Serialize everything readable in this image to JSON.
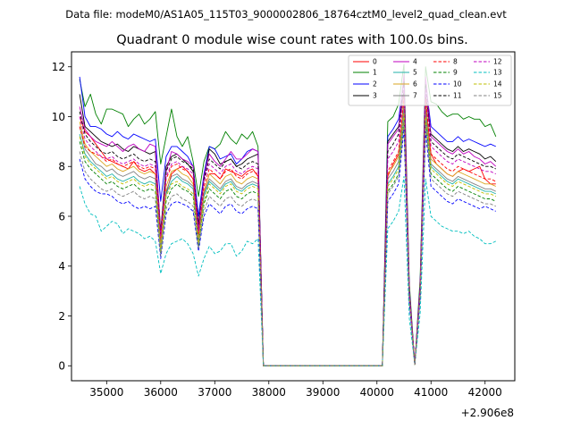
{
  "suptitle": "Data file: modeM0/AS1A05_115T03_9000002806_18764cztM0_level2_quad_clean.evt",
  "chart_data": {
    "type": "line",
    "title": "Quadrant 0 module wise count rates with 100.0s bins.",
    "xlabel": "",
    "ylabel": "",
    "x_offset_label": "+2.906e8",
    "xlim": [
      34350,
      42550
    ],
    "ylim": [
      -0.6,
      12.6
    ],
    "xticks": [
      35000,
      36000,
      37000,
      38000,
      39000,
      40000,
      41000,
      42000
    ],
    "xtick_labels": [
      "35000",
      "36000",
      "37000",
      "38000",
      "39000",
      "40000",
      "41000",
      "42000"
    ],
    "yticks": [
      0,
      2,
      4,
      6,
      8,
      10,
      12
    ],
    "ytick_labels": [
      "0",
      "2",
      "4",
      "6",
      "8",
      "10",
      "12"
    ],
    "grid": false,
    "legend_position": "top-right",
    "legend_columns": 4,
    "bins": {
      "x_start": 34500,
      "x_step": 100,
      "count": 78,
      "note": "x values = x_start + i*x_step, offset 2.906e8"
    },
    "gap_value": 0,
    "series": [
      {
        "name": "0",
        "color": "#ff0000",
        "dash": "solid",
        "seg1": [
          10.0,
          9.4,
          9.2,
          8.9,
          8.6,
          8.3,
          8.2,
          8.1,
          8.0,
          7.9,
          8.2,
          7.9,
          7.8,
          7.9,
          7.7,
          5.0,
          6.9,
          7.7,
          7.9,
          8.0,
          7.8,
          7.5,
          5.2,
          7.0,
          7.7,
          7.7,
          7.5,
          7.9,
          7.8,
          7.7,
          7.6,
          7.8,
          7.9,
          7.6
        ],
        "seg2": [
          7.6,
          8.1,
          8.5,
          10.7,
          2.8,
          0.05,
          3.0,
          10.6,
          8.5,
          8.1,
          7.9,
          7.7,
          7.6,
          7.8,
          7.9,
          7.8,
          7.9,
          8.0,
          7.5,
          7.3,
          7.3
        ]
      },
      {
        "name": "1",
        "color": "#008000",
        "dash": "solid",
        "seg1": [
          11.5,
          10.4,
          10.9,
          10.1,
          9.7,
          10.3,
          10.3,
          10.2,
          10.1,
          9.6,
          9.9,
          10.1,
          9.7,
          9.9,
          10.2,
          8.1,
          9.2,
          10.3,
          9.2,
          8.8,
          9.2,
          8.2,
          6.8,
          8.2,
          8.8,
          8.7,
          8.9,
          9.4,
          9.1,
          8.9,
          9.3,
          9.1,
          9.4,
          8.8
        ],
        "seg2": [
          9.8,
          10.0,
          10.5,
          12.1,
          3.3,
          0.05,
          3.5,
          12.0,
          10.6,
          10.5,
          10.2,
          10.0,
          10.1,
          10.1,
          9.9,
          10.0,
          9.9,
          9.9,
          9.6,
          9.7,
          9.2
        ]
      },
      {
        "name": "2",
        "color": "#0000ff",
        "dash": "solid",
        "seg1": [
          11.6,
          10.0,
          9.6,
          9.6,
          9.5,
          9.3,
          9.2,
          9.4,
          9.2,
          9.1,
          9.3,
          9.2,
          9.1,
          9.0,
          9.1,
          6.6,
          8.4,
          8.8,
          8.8,
          8.6,
          8.4,
          8.0,
          6.0,
          7.7,
          8.8,
          8.7,
          8.3,
          8.4,
          8.5,
          8.1,
          8.3,
          8.6,
          8.7,
          8.6
        ],
        "seg2": [
          9.2,
          9.5,
          9.9,
          11.5,
          3.1,
          0.05,
          3.3,
          11.4,
          9.6,
          9.4,
          9.2,
          9.0,
          9.0,
          9.2,
          9.0,
          9.1,
          9.0,
          8.9,
          8.8,
          8.9,
          8.8
        ]
      },
      {
        "name": "3",
        "color": "#000000",
        "dash": "solid",
        "seg1": [
          10.9,
          9.6,
          9.4,
          9.2,
          9.0,
          8.9,
          8.8,
          8.9,
          8.7,
          8.6,
          8.8,
          8.7,
          8.6,
          8.5,
          8.6,
          5.4,
          8.0,
          8.4,
          8.5,
          8.3,
          8.1,
          7.8,
          5.7,
          7.5,
          8.7,
          8.5,
          8.1,
          8.2,
          8.3,
          8.0,
          8.1,
          8.3,
          8.4,
          8.5
        ],
        "seg2": [
          9.0,
          9.3,
          9.6,
          11.0,
          3.0,
          0.05,
          3.2,
          10.9,
          9.3,
          9.1,
          8.9,
          8.7,
          8.6,
          8.8,
          8.6,
          8.7,
          8.6,
          8.5,
          8.3,
          8.4,
          8.2
        ]
      },
      {
        "name": "4",
        "color": "#bf00bf",
        "dash": "solid",
        "seg1": [
          10.4,
          9.5,
          9.2,
          9.0,
          8.9,
          8.8,
          9.0,
          8.8,
          8.6,
          8.8,
          8.9,
          8.7,
          8.6,
          8.9,
          8.8,
          5.3,
          7.8,
          8.6,
          8.5,
          8.3,
          8.2,
          8.0,
          5.5,
          7.6,
          8.5,
          8.2,
          8.0,
          8.3,
          8.6,
          8.3,
          8.3,
          8.5,
          8.7,
          8.6
        ],
        "seg2": [
          8.9,
          9.2,
          9.5,
          11.7,
          3.0,
          0.05,
          3.2,
          11.6,
          9.2,
          9.0,
          8.8,
          8.6,
          8.5,
          8.7,
          8.5,
          8.6,
          8.4,
          8.3,
          8.1,
          8.2,
          8.0
        ]
      },
      {
        "name": "5",
        "color": "#20b2aa",
        "dash": "solid",
        "seg1": [
          9.3,
          8.5,
          8.2,
          8.0,
          7.8,
          7.6,
          7.7,
          7.5,
          7.4,
          7.5,
          7.6,
          7.4,
          7.3,
          7.4,
          7.3,
          4.6,
          6.9,
          7.4,
          7.6,
          7.4,
          7.3,
          7.1,
          5.0,
          6.8,
          7.4,
          7.2,
          7.0,
          7.3,
          7.4,
          7.1,
          7.0,
          7.2,
          7.3,
          7.2
        ],
        "seg2": [
          7.3,
          7.6,
          8.0,
          10.2,
          2.7,
          0.05,
          2.9,
          10.1,
          8.0,
          7.8,
          7.6,
          7.4,
          7.3,
          7.5,
          7.4,
          7.3,
          7.2,
          7.1,
          7.0,
          7.0,
          6.9
        ]
      },
      {
        "name": "6",
        "color": "#daa520",
        "dash": "solid",
        "seg1": [
          9.8,
          8.9,
          8.6,
          8.4,
          8.2,
          8.0,
          8.1,
          7.9,
          7.8,
          7.9,
          8.0,
          7.8,
          7.7,
          7.8,
          7.7,
          4.8,
          7.2,
          7.8,
          7.9,
          7.7,
          7.6,
          7.3,
          5.1,
          7.0,
          7.7,
          7.5,
          7.3,
          7.6,
          7.7,
          7.4,
          7.3,
          7.5,
          7.6,
          7.5
        ],
        "seg2": [
          7.7,
          8.0,
          8.4,
          10.6,
          2.8,
          0.05,
          3.0,
          10.5,
          8.3,
          8.1,
          7.9,
          7.7,
          7.6,
          7.8,
          7.7,
          7.6,
          7.5,
          7.4,
          7.3,
          7.3,
          7.2
        ]
      },
      {
        "name": "7",
        "color": "#808080",
        "dash": "solid",
        "seg1": [
          9.6,
          8.7,
          8.4,
          8.1,
          8.0,
          7.8,
          7.9,
          7.7,
          7.6,
          7.7,
          7.8,
          7.6,
          7.5,
          7.6,
          7.5,
          4.7,
          7.0,
          7.6,
          7.7,
          7.5,
          7.4,
          7.2,
          5.0,
          6.9,
          7.5,
          7.3,
          7.1,
          7.4,
          7.5,
          7.2,
          7.1,
          7.3,
          7.4,
          7.3
        ],
        "seg2": [
          7.5,
          7.8,
          8.2,
          10.4,
          2.7,
          0.05,
          2.9,
          10.3,
          8.1,
          7.9,
          7.7,
          7.5,
          7.4,
          7.6,
          7.5,
          7.4,
          7.3,
          7.2,
          7.1,
          7.1,
          7.0
        ]
      },
      {
        "name": "8",
        "color": "#ff0000",
        "dash": "dashed",
        "seg1": [
          9.6,
          8.8,
          8.6,
          8.5,
          8.4,
          8.2,
          8.3,
          8.1,
          8.0,
          8.1,
          8.2,
          8.0,
          7.9,
          8.0,
          7.9,
          5.2,
          7.5,
          8.0,
          8.1,
          7.9,
          7.8,
          7.5,
          5.3,
          7.2,
          7.9,
          7.7,
          7.5,
          7.8,
          7.9,
          7.6,
          7.5,
          7.7,
          7.8,
          7.7
        ],
        "seg2": [
          7.8,
          8.2,
          8.6,
          10.8,
          2.9,
          0.05,
          3.1,
          10.7,
          8.5,
          8.3,
          8.1,
          7.9,
          7.8,
          8.0,
          7.9,
          7.8,
          7.7,
          7.6,
          7.5,
          7.5,
          7.4
        ]
      },
      {
        "name": "9",
        "color": "#008000",
        "dash": "dashed",
        "seg1": [
          9.0,
          8.2,
          7.9,
          7.7,
          7.5,
          7.3,
          7.4,
          7.2,
          7.1,
          7.2,
          7.3,
          7.1,
          7.0,
          7.1,
          7.0,
          4.5,
          6.6,
          7.1,
          7.3,
          7.1,
          7.0,
          6.8,
          4.8,
          6.5,
          7.1,
          6.9,
          6.7,
          7.0,
          7.1,
          6.8,
          6.7,
          6.9,
          7.0,
          6.9
        ],
        "seg2": [
          7.0,
          7.3,
          7.7,
          9.9,
          2.6,
          0.05,
          2.8,
          9.8,
          7.7,
          7.5,
          7.3,
          7.1,
          7.0,
          7.2,
          7.1,
          7.0,
          6.9,
          6.8,
          6.7,
          6.7,
          6.6
        ]
      },
      {
        "name": "10",
        "color": "#0000ff",
        "dash": "dashed",
        "seg1": [
          8.3,
          7.5,
          7.2,
          7.0,
          6.9,
          6.9,
          6.8,
          6.6,
          6.5,
          6.6,
          6.4,
          6.3,
          6.4,
          6.3,
          6.4,
          4.3,
          6.1,
          6.5,
          6.6,
          6.5,
          6.4,
          6.2,
          4.6,
          6.0,
          6.5,
          6.3,
          6.1,
          6.4,
          6.5,
          6.2,
          6.1,
          6.3,
          6.4,
          6.3
        ],
        "seg2": [
          6.6,
          6.9,
          7.3,
          9.5,
          2.5,
          0.05,
          2.7,
          9.4,
          7.2,
          7.0,
          6.8,
          6.6,
          6.5,
          6.7,
          6.6,
          6.5,
          6.4,
          6.3,
          6.4,
          6.3,
          6.2
        ]
      },
      {
        "name": "11",
        "color": "#000000",
        "dash": "dashed",
        "seg1": [
          10.2,
          9.3,
          9.0,
          8.8,
          8.6,
          8.5,
          8.6,
          8.4,
          8.3,
          8.4,
          8.5,
          8.3,
          8.2,
          8.3,
          8.2,
          5.3,
          7.8,
          8.3,
          8.4,
          8.2,
          8.1,
          7.9,
          5.5,
          7.5,
          8.3,
          8.1,
          7.9,
          8.2,
          8.3,
          8.0,
          7.9,
          8.1,
          8.2,
          8.1
        ],
        "seg2": [
          8.6,
          8.9,
          9.3,
          11.4,
          2.9,
          0.05,
          3.1,
          11.3,
          9.0,
          8.8,
          8.6,
          8.4,
          8.3,
          8.5,
          8.4,
          8.3,
          8.2,
          8.1,
          8.0,
          8.0,
          7.9
        ]
      },
      {
        "name": "12",
        "color": "#bf00bf",
        "dash": "dashed",
        "seg1": [
          10.0,
          9.1,
          8.8,
          8.6,
          8.4,
          8.3,
          8.4,
          8.2,
          8.1,
          8.2,
          8.3,
          8.1,
          8.0,
          8.1,
          8.0,
          5.2,
          7.6,
          8.1,
          8.2,
          8.0,
          7.9,
          7.7,
          5.4,
          7.4,
          8.1,
          7.9,
          7.7,
          8.0,
          8.1,
          7.8,
          7.7,
          7.9,
          8.0,
          7.9
        ],
        "seg2": [
          8.3,
          8.6,
          9.0,
          11.2,
          2.9,
          0.05,
          3.1,
          11.1,
          8.8,
          8.6,
          8.4,
          8.2,
          8.1,
          8.3,
          8.2,
          8.1,
          8.0,
          7.9,
          7.8,
          7.8,
          7.7
        ]
      },
      {
        "name": "13",
        "color": "#00bfbf",
        "dash": "dashed",
        "seg1": [
          7.2,
          6.5,
          6.1,
          6.0,
          5.4,
          5.6,
          5.8,
          5.7,
          5.3,
          5.5,
          5.4,
          5.3,
          5.1,
          5.2,
          5.0,
          3.7,
          4.5,
          4.9,
          5.0,
          5.1,
          4.9,
          4.5,
          3.6,
          4.3,
          4.8,
          4.5,
          4.6,
          4.9,
          4.9,
          4.4,
          4.6,
          5.0,
          4.9,
          5.1
        ],
        "seg2": [
          5.5,
          5.8,
          6.2,
          7.6,
          1.9,
          0.05,
          2.1,
          7.5,
          6.0,
          5.8,
          5.6,
          5.5,
          5.4,
          5.4,
          5.3,
          5.4,
          5.2,
          5.1,
          4.9,
          4.9,
          5.0
        ]
      },
      {
        "name": "14",
        "color": "#bfbf00",
        "dash": "dashed",
        "seg1": [
          9.2,
          8.4,
          8.1,
          7.9,
          7.7,
          7.5,
          7.6,
          7.4,
          7.3,
          7.4,
          7.5,
          7.3,
          7.2,
          7.3,
          7.2,
          4.6,
          6.8,
          7.3,
          7.4,
          7.2,
          7.1,
          6.9,
          4.9,
          6.6,
          7.3,
          7.1,
          6.9,
          7.2,
          7.3,
          7.0,
          6.9,
          7.1,
          7.2,
          7.1
        ],
        "seg2": [
          7.2,
          7.5,
          7.9,
          10.1,
          2.7,
          0.05,
          2.9,
          10.0,
          7.9,
          7.7,
          7.5,
          7.3,
          7.2,
          7.4,
          7.3,
          7.2,
          7.1,
          7.0,
          6.9,
          6.9,
          6.8
        ]
      },
      {
        "name": "15",
        "color": "#808080",
        "dash": "dashed",
        "seg1": [
          8.6,
          7.8,
          7.5,
          7.3,
          7.1,
          7.0,
          7.1,
          6.9,
          6.8,
          6.9,
          7.0,
          6.8,
          6.7,
          6.8,
          6.7,
          4.4,
          6.3,
          6.8,
          6.9,
          6.7,
          6.6,
          6.4,
          4.7,
          6.2,
          6.8,
          6.6,
          6.4,
          6.7,
          6.8,
          6.5,
          6.4,
          6.6,
          6.7,
          6.6
        ],
        "seg2": [
          6.9,
          7.2,
          7.6,
          9.8,
          2.6,
          0.05,
          2.8,
          9.7,
          7.5,
          7.3,
          7.1,
          6.9,
          6.8,
          7.0,
          6.9,
          6.8,
          6.7,
          6.6,
          6.5,
          6.5,
          6.4
        ]
      }
    ]
  }
}
